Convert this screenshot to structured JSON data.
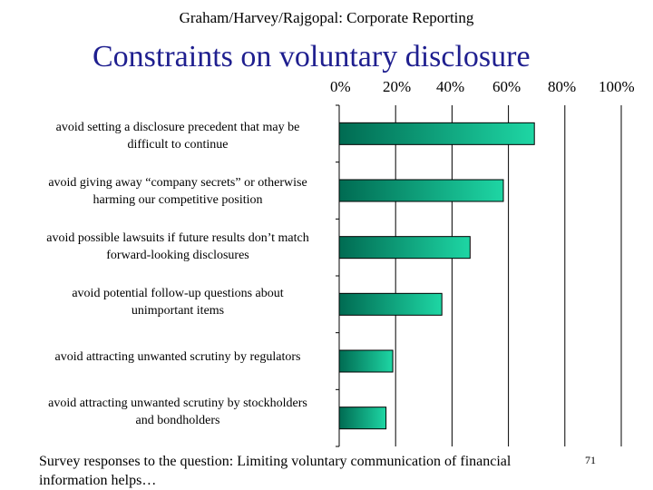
{
  "header": "Graham/Harvey/Rajgopal: Corporate Reporting",
  "slide_title": "Constraints on voluntary disclosure",
  "caption": "Survey responses to the question: Limiting voluntary communication of financial information helps…",
  "page_number": "71",
  "colors": {
    "bar_dark": "#006b52",
    "bar_light": "#1ed6a4",
    "title": "#1f1f8f"
  },
  "chart_data": {
    "type": "bar",
    "orientation": "horizontal",
    "categories": [
      [
        "avoid setting a disclosure precedent that may be",
        "difficult to continue"
      ],
      [
        "avoid giving away “company secrets” or otherwise",
        "harming our competitive position"
      ],
      [
        "avoid possible lawsuits if future results don’t match",
        "forward-looking disclosures"
      ],
      [
        "avoid potential follow-up questions about",
        "unimportant items"
      ],
      [
        "avoid attracting unwanted scrutiny by regulators"
      ],
      [
        "avoid attracting unwanted scrutiny by stockholders",
        "and bondholders"
      ]
    ],
    "values": [
      69.2,
      58.2,
      46.4,
      36.4,
      19.0,
      16.6
    ],
    "x_ticks": [
      "0%",
      "20%",
      "40%",
      "60%",
      "80%",
      "100%"
    ],
    "xlim": [
      0,
      100
    ],
    "grid": true,
    "axis_position": "top"
  }
}
